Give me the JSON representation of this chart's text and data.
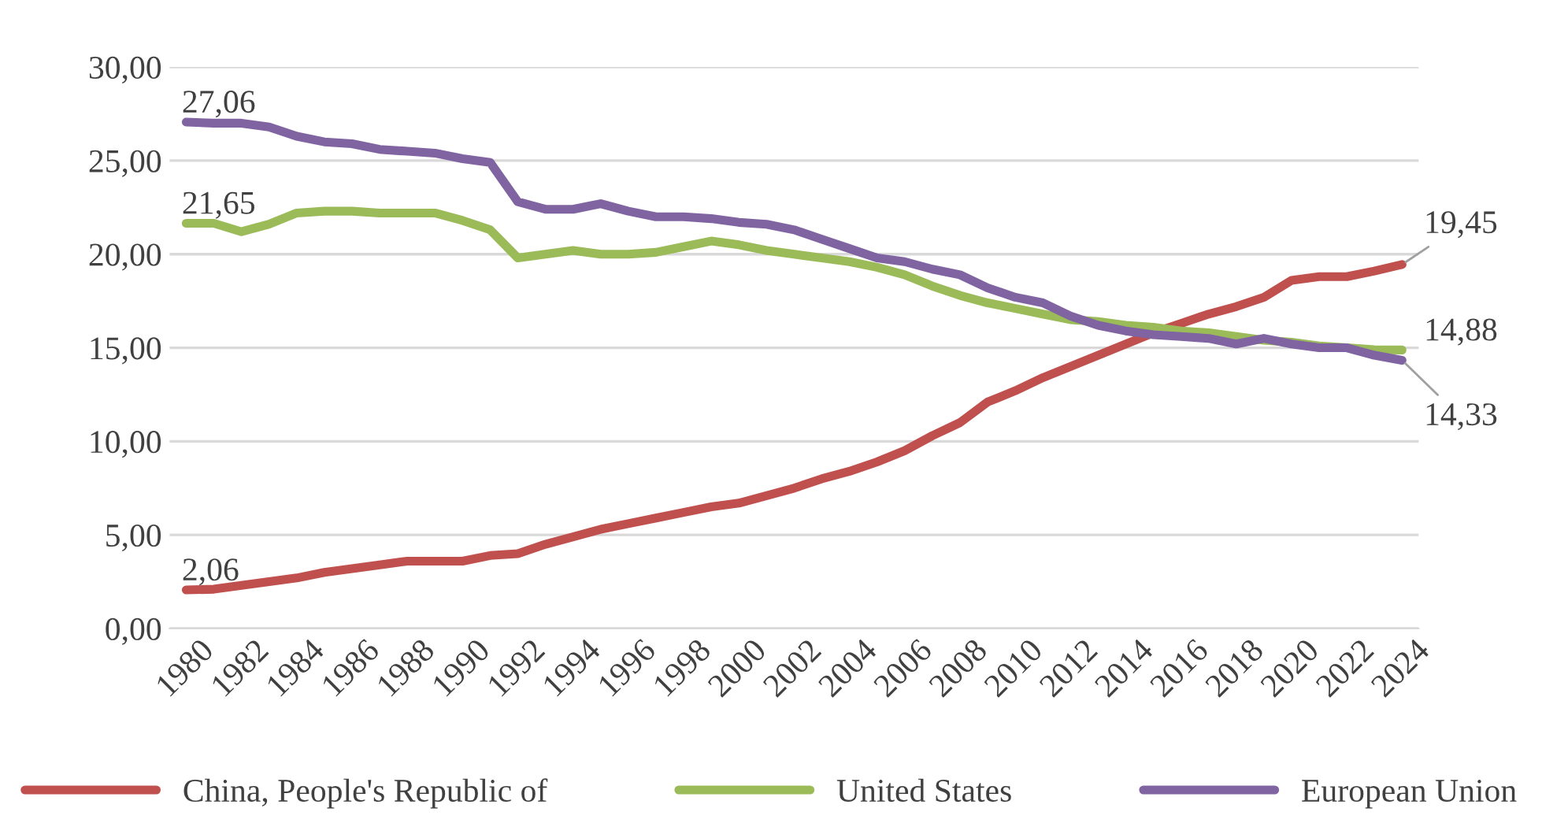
{
  "chart_data": {
    "type": "line",
    "categories": [
      "1980",
      null,
      "1982",
      null,
      "1984",
      null,
      "1986",
      null,
      "1988",
      null,
      "1990",
      null,
      "1992",
      null,
      "1994",
      null,
      "1996",
      null,
      "1998",
      null,
      "2000",
      null,
      "2002",
      null,
      "2004",
      null,
      "2006",
      null,
      "2008",
      null,
      "2010",
      null,
      "2012",
      null,
      "2014",
      null,
      "2016",
      null,
      "2018",
      null,
      "2020",
      null,
      "2022",
      null,
      "2024"
    ],
    "series": [
      {
        "name": "China, People's Republic of",
        "color": "#c0504d",
        "values": [
          2.06,
          2.1,
          2.3,
          2.5,
          2.7,
          3.0,
          3.2,
          3.4,
          3.6,
          3.6,
          3.6,
          3.9,
          4.0,
          4.5,
          4.9,
          5.3,
          5.6,
          5.9,
          6.2,
          6.5,
          6.7,
          7.1,
          7.5,
          8.0,
          8.4,
          8.9,
          9.5,
          10.3,
          11.0,
          12.1,
          12.7,
          13.4,
          14.0,
          14.6,
          15.2,
          15.8,
          16.3,
          16.8,
          17.2,
          17.7,
          18.6,
          18.8,
          18.8,
          19.1,
          19.45
        ]
      },
      {
        "name": "United States",
        "color": "#9bbb59",
        "values": [
          21.65,
          21.65,
          21.2,
          21.6,
          22.2,
          22.3,
          22.3,
          22.2,
          22.2,
          22.2,
          21.8,
          21.3,
          19.8,
          20.0,
          20.2,
          20.0,
          20.0,
          20.1,
          20.4,
          20.7,
          20.5,
          20.2,
          20.0,
          19.8,
          19.6,
          19.3,
          18.9,
          18.3,
          17.8,
          17.4,
          17.1,
          16.8,
          16.5,
          16.4,
          16.2,
          16.1,
          15.9,
          15.8,
          15.6,
          15.4,
          15.3,
          15.1,
          15.0,
          14.9,
          14.88
        ]
      },
      {
        "name": "European Union",
        "color": "#8064a2",
        "values": [
          27.06,
          27.0,
          27.0,
          26.8,
          26.3,
          26.0,
          25.9,
          25.6,
          25.5,
          25.4,
          25.1,
          24.9,
          22.8,
          22.4,
          22.4,
          22.7,
          22.3,
          22.0,
          22.0,
          21.9,
          21.7,
          21.6,
          21.3,
          20.8,
          20.3,
          19.8,
          19.6,
          19.2,
          18.9,
          18.2,
          17.7,
          17.4,
          16.7,
          16.2,
          15.9,
          15.7,
          15.6,
          15.5,
          15.2,
          15.5,
          15.2,
          15.0,
          15.0,
          14.6,
          14.33
        ]
      }
    ],
    "ylim": [
      0,
      30
    ],
    "yticks": [
      {
        "value": 0,
        "label": "0,00"
      },
      {
        "value": 5,
        "label": "5,00"
      },
      {
        "value": 10,
        "label": "10,00"
      },
      {
        "value": 15,
        "label": "15,00"
      },
      {
        "value": 20,
        "label": "20,00"
      },
      {
        "value": 25,
        "label": "25,00"
      },
      {
        "value": 30,
        "label": "30,00"
      }
    ],
    "annotations": [
      {
        "text": "2,06",
        "x": "1980",
        "y": 2.06
      },
      {
        "text": "21,65",
        "x": "1980",
        "y": 21.65
      },
      {
        "text": "27,06",
        "x": "1980",
        "y": 27.06
      },
      {
        "text": "19,45",
        "x": "2024",
        "y": 19.45
      },
      {
        "text": "14,88",
        "x": "2024",
        "y": 14.88
      },
      {
        "text": "14,33",
        "x": "2024",
        "y": 14.33
      }
    ],
    "grid": "y",
    "legend": "bottom",
    "marker": "none",
    "line_style": "solid"
  }
}
